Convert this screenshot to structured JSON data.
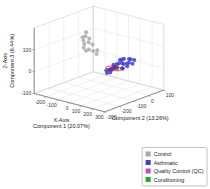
{
  "chart_data": {
    "type": "scatter3d",
    "xlabel": "X-Axis\nComponent 1 (20.07%)",
    "ylabel": "Component 2 (13.26%)",
    "zlabel": "Z-Axis\nComponent 3 (6.44%)",
    "xlim": [
      -300,
      300
    ],
    "ylim": [
      -300,
      100
    ],
    "zlim": [
      -100,
      200
    ],
    "xticks": [
      -200,
      -100,
      0,
      100,
      200,
      300
    ],
    "yticks": [
      -300,
      -200,
      -100,
      0,
      100
    ],
    "zticks": [
      -100,
      0,
      100
    ],
    "grid": true,
    "legend": "lower right",
    "series": [
      {
        "name": "Control",
        "color": "#aaaaaa",
        "x": [
          -50,
          -80,
          -60,
          -100,
          -120,
          -140,
          -80,
          -100,
          -60,
          -120,
          -40,
          -20,
          -140,
          -160
        ],
        "y": [
          -100,
          -80,
          -120,
          -90,
          -70,
          -100,
          -140,
          -120,
          -140,
          -110,
          -80,
          -100,
          -80,
          -60
        ],
        "z": [
          80,
          100,
          90,
          110,
          120,
          130,
          100,
          110,
          90,
          120,
          80,
          70,
          130,
          140
        ]
      },
      {
        "name": "Asthmatic",
        "color": "#4040cc",
        "x": [
          60,
          90,
          100,
          120,
          80,
          110,
          130,
          150,
          140,
          170,
          160,
          180,
          200,
          190,
          210,
          220,
          230,
          240,
          250,
          260,
          120,
          100,
          80,
          140,
          160,
          70,
          50
        ],
        "y": [
          -50,
          -30,
          -60,
          -40,
          -80,
          -90,
          -70,
          -50,
          -100,
          -80,
          -60,
          -40,
          -70,
          -90,
          -110,
          -60,
          -80,
          -100,
          -60,
          -80,
          -120,
          -130,
          -110,
          -140,
          -120,
          -50,
          -70
        ],
        "z": [
          20,
          40,
          30,
          50,
          10,
          20,
          40,
          60,
          30,
          50,
          40,
          60,
          50,
          30,
          40,
          70,
          60,
          50,
          70,
          60,
          10,
          20,
          0,
          30,
          40,
          10,
          0
        ]
      },
      {
        "name": "Quality Control (QC)",
        "color": "#cc44cc",
        "x": [
          10,
          30,
          20,
          0,
          40,
          15
        ],
        "y": [
          -10,
          -20,
          -30,
          -20,
          -10,
          -25
        ],
        "z": [
          -10,
          -5,
          -15,
          -20,
          -8,
          -12
        ]
      },
      {
        "name": "Conditioning",
        "color": "#22aa22",
        "x": [
          50
        ],
        "y": [
          -15
        ],
        "z": [
          -5
        ]
      }
    ],
    "ellipse": {
      "center": [
        25,
        -18,
        -10
      ],
      "radii": [
        60,
        25
      ],
      "color": "red"
    }
  }
}
